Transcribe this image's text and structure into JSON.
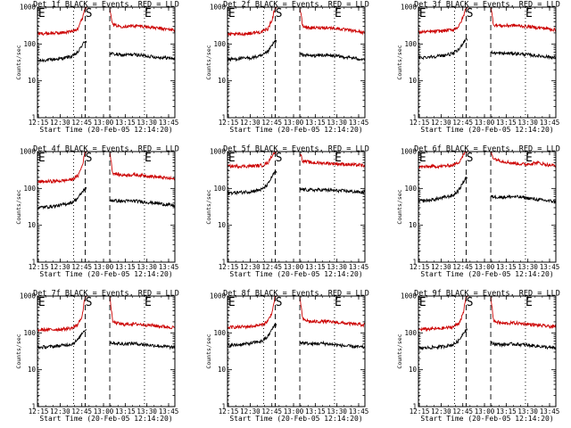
{
  "chart_data": {
    "type": "line",
    "layout": "3x3 grid of detector time profiles",
    "yscale": "log",
    "ylabel": "Counts/sec",
    "xlabel": "Start Time (20-Feb-05 12:14:20)",
    "ylim": [
      1,
      1000
    ],
    "ytick_labels": [
      "1",
      "10",
      "100",
      "1000"
    ],
    "xlim_minutes": [
      0,
      95
    ],
    "xtick_minutes": [
      0.67,
      15.67,
      30.67,
      45.67,
      60.67,
      75.67,
      90.67
    ],
    "xtick_labels": [
      "12:15",
      "12:30",
      "12:45",
      "13:00",
      "13:15",
      "13:30",
      "13:45"
    ],
    "series_colors": {
      "events": "#000000",
      "lld": "#cc0000"
    },
    "markers": [
      {
        "label": "E",
        "minute": 0.5,
        "line": "dotted"
      },
      {
        "label": "",
        "minute": 25,
        "line": "dotted"
      },
      {
        "label": "S",
        "minute": 33,
        "line": "dashed"
      },
      {
        "label": "",
        "minute": 50,
        "line": "dashed"
      },
      {
        "label": "E",
        "minute": 74,
        "line": "dotted"
      }
    ],
    "gap_minutes": [
      34,
      50
    ],
    "panels": [
      {
        "title": "Det 1f BLACK = Events, RED = LLD",
        "series": [
          {
            "name": "Events",
            "color": "#000000",
            "x": [
              0,
              8,
              16,
              24,
              28,
              31,
              33,
              50,
              58,
              66,
              74,
              82,
              90,
              95
            ],
            "values": [
              35,
              37,
              40,
              46,
              60,
              95,
              120,
              55,
              50,
              52,
              48,
              44,
              42,
              40
            ]
          },
          {
            "name": "LLD",
            "color": "#cc0000",
            "x": [
              0,
              8,
              16,
              24,
              28,
              31,
              33,
              50,
              52,
              58,
              66,
              74,
              82,
              90,
              95
            ],
            "values": [
              190,
              195,
              200,
              220,
              270,
              500,
              1000,
              1000,
              330,
              300,
              310,
              300,
              270,
              250,
              240
            ]
          }
        ]
      },
      {
        "title": "Det 2f BLACK = Events, RED = LLD",
        "series": [
          {
            "name": "Events",
            "color": "#000000",
            "x": [
              0,
              8,
              16,
              24,
              28,
              31,
              33,
              50,
              58,
              66,
              74,
              82,
              90,
              95
            ],
            "values": [
              38,
              40,
              42,
              48,
              62,
              95,
              120,
              52,
              48,
              50,
              47,
              44,
              40,
              38
            ]
          },
          {
            "name": "LLD",
            "color": "#cc0000",
            "x": [
              0,
              8,
              16,
              24,
              28,
              31,
              33,
              50,
              52,
              58,
              66,
              74,
              82,
              90,
              95
            ],
            "values": [
              180,
              185,
              195,
              215,
              260,
              480,
              1000,
              1000,
              300,
              270,
              280,
              270,
              240,
              220,
              200
            ]
          }
        ]
      },
      {
        "title": "Det 3f BLACK = Events, RED = LLD",
        "series": [
          {
            "name": "Events",
            "color": "#000000",
            "x": [
              0,
              8,
              16,
              24,
              28,
              31,
              33,
              50,
              58,
              66,
              74,
              82,
              90,
              95
            ],
            "values": [
              42,
              45,
              48,
              55,
              70,
              110,
              140,
              58,
              55,
              56,
              52,
              48,
              45,
              42
            ]
          },
          {
            "name": "LLD",
            "color": "#cc0000",
            "x": [
              0,
              8,
              16,
              24,
              28,
              31,
              33,
              50,
              52,
              58,
              66,
              74,
              82,
              90,
              95
            ],
            "values": [
              210,
              215,
              225,
              245,
              300,
              550,
              1000,
              1000,
              330,
              310,
              320,
              300,
              280,
              260,
              240
            ]
          }
        ]
      },
      {
        "title": "Det 4f BLACK = Events, RED = LLD",
        "series": [
          {
            "name": "Events",
            "color": "#000000",
            "x": [
              0,
              8,
              16,
              24,
              28,
              31,
              33,
              50,
              58,
              66,
              74,
              82,
              90,
              95
            ],
            "values": [
              30,
              32,
              35,
              42,
              55,
              80,
              100,
              48,
              45,
              46,
              43,
              40,
              36,
              34
            ]
          },
          {
            "name": "LLD",
            "color": "#cc0000",
            "x": [
              0,
              8,
              16,
              24,
              28,
              31,
              33,
              50,
              52,
              58,
              66,
              74,
              82,
              90,
              95
            ],
            "values": [
              150,
              155,
              160,
              175,
              220,
              420,
              1000,
              1000,
              260,
              230,
              235,
              225,
              205,
              190,
              180
            ]
          }
        ]
      },
      {
        "title": "Det 5f BLACK = Events, RED = LLD",
        "series": [
          {
            "name": "Events",
            "color": "#000000",
            "x": [
              0,
              8,
              16,
              24,
              28,
              31,
              33,
              50,
              58,
              66,
              74,
              82,
              90,
              95
            ],
            "values": [
              75,
              78,
              82,
              95,
              130,
              220,
              280,
              95,
              90,
              92,
              88,
              85,
              80,
              78
            ]
          },
          {
            "name": "LLD",
            "color": "#cc0000",
            "x": [
              0,
              8,
              16,
              24,
              28,
              31,
              33,
              50,
              52,
              58,
              66,
              74,
              82,
              90,
              95
            ],
            "values": [
              400,
              400,
              405,
              420,
              500,
              800,
              1000,
              1000,
              560,
              500,
              490,
              470,
              450,
              430,
              420
            ]
          }
        ]
      },
      {
        "title": "Det 6f BLACK = Events, RED = LLD",
        "series": [
          {
            "name": "Events",
            "color": "#000000",
            "x": [
              0,
              8,
              16,
              24,
              28,
              31,
              33,
              50,
              58,
              66,
              74,
              82,
              90,
              95
            ],
            "values": [
              45,
              48,
              55,
              65,
              90,
              150,
              200,
              60,
              58,
              60,
              56,
              50,
              46,
              44
            ]
          },
          {
            "name": "LLD",
            "color": "#cc0000",
            "x": [
              0,
              8,
              16,
              24,
              28,
              31,
              33,
              50,
              52,
              58,
              66,
              74,
              82,
              90,
              95
            ],
            "values": [
              380,
              390,
              400,
              430,
              520,
              800,
              1000,
              1000,
              650,
              550,
              480,
              450,
              500,
              430,
              420
            ]
          }
        ]
      },
      {
        "title": "Det 7f BLACK = Events, RED = LLD",
        "series": [
          {
            "name": "Events",
            "color": "#000000",
            "x": [
              0,
              8,
              16,
              24,
              28,
              31,
              33,
              50,
              58,
              66,
              74,
              82,
              90,
              95
            ],
            "values": [
              40,
              42,
              45,
              50,
              65,
              100,
              125,
              55,
              50,
              52,
              48,
              45,
              42,
              40
            ]
          },
          {
            "name": "LLD",
            "color": "#cc0000",
            "x": [
              0,
              8,
              16,
              24,
              28,
              31,
              33,
              50,
              52,
              58,
              66,
              74,
              82,
              90,
              95
            ],
            "values": [
              120,
              122,
              125,
              135,
              170,
              300,
              1000,
              1000,
              200,
              170,
              175,
              168,
              155,
              145,
              140
            ]
          }
        ]
      },
      {
        "title": "Det 8f BLACK = Events, RED = LLD",
        "series": [
          {
            "name": "Events",
            "color": "#000000",
            "x": [
              0,
              8,
              16,
              24,
              28,
              31,
              33,
              50,
              58,
              66,
              74,
              82,
              90,
              95
            ],
            "values": [
              45,
              48,
              52,
              60,
              80,
              130,
              170,
              55,
              50,
              52,
              48,
              44,
              42,
              40
            ]
          },
          {
            "name": "LLD",
            "color": "#cc0000",
            "x": [
              0,
              8,
              16,
              24,
              28,
              31,
              33,
              50,
              52,
              58,
              66,
              74,
              82,
              90,
              95
            ],
            "values": [
              140,
              145,
              150,
              165,
              210,
              380,
              1000,
              1000,
              230,
              200,
              205,
              195,
              180,
              170,
              165
            ]
          }
        ]
      },
      {
        "title": "Det 9f BLACK = Events, RED = LLD",
        "series": [
          {
            "name": "Events",
            "color": "#000000",
            "x": [
              0,
              8,
              16,
              24,
              28,
              31,
              33,
              50,
              58,
              66,
              74,
              82,
              90,
              95
            ],
            "values": [
              38,
              40,
              42,
              48,
              62,
              100,
              125,
              52,
              48,
              50,
              47,
              44,
              40,
              38
            ]
          },
          {
            "name": "LLD",
            "color": "#cc0000",
            "x": [
              0,
              8,
              16,
              24,
              28,
              31,
              33,
              50,
              52,
              58,
              66,
              74,
              82,
              90,
              95
            ],
            "values": [
              125,
              128,
              132,
              145,
              185,
              330,
              1000,
              1000,
              210,
              180,
              185,
              176,
              162,
              150,
              145
            ]
          }
        ]
      }
    ]
  }
}
